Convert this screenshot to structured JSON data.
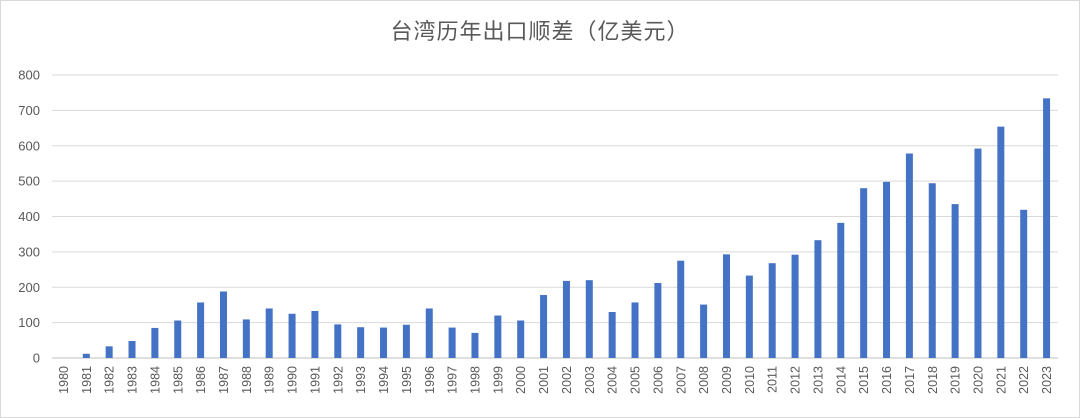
{
  "chart_data": {
    "type": "bar",
    "title": "台湾历年出口顺差（亿美元）",
    "xlabel": "",
    "ylabel": "",
    "ylim": [
      0,
      800
    ],
    "yticks": [
      0,
      100,
      200,
      300,
      400,
      500,
      600,
      700,
      800
    ],
    "grid": true,
    "legend": "none",
    "bar_color": "#4472C4",
    "categories": [
      "1980",
      "1981",
      "1982",
      "1983",
      "1984",
      "1985",
      "1986",
      "1987",
      "1988",
      "1989",
      "1990",
      "1991",
      "1992",
      "1993",
      "1994",
      "1995",
      "1996",
      "1997",
      "1998",
      "1999",
      "2000",
      "2001",
      "2002",
      "2003",
      "2004",
      "2005",
      "2006",
      "2007",
      "2008",
      "2009",
      "2010",
      "2011",
      "2012",
      "2013",
      "2014",
      "2015",
      "2016",
      "2017",
      "2018",
      "2019",
      "2020",
      "2021",
      "2022",
      "2023"
    ],
    "values": [
      0,
      12,
      33,
      48,
      85,
      106,
      157,
      188,
      109,
      140,
      125,
      133,
      95,
      87,
      86,
      94,
      140,
      86,
      71,
      120,
      106,
      178,
      218,
      220,
      130,
      157,
      212,
      275,
      151,
      293,
      233,
      268,
      292,
      333,
      382,
      480,
      498,
      578,
      494,
      435,
      592,
      654,
      419,
      734
    ]
  }
}
